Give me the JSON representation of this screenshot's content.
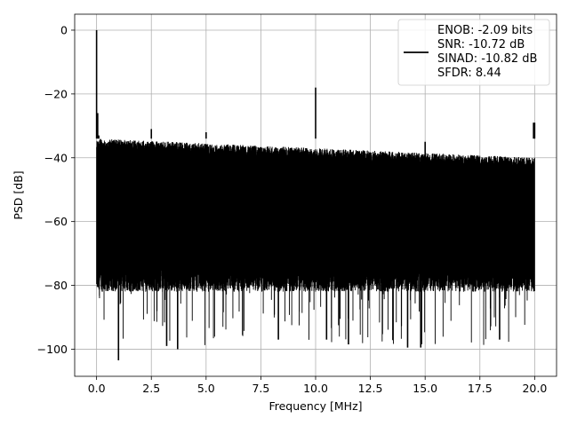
{
  "chart_data": {
    "type": "line",
    "title": "",
    "xlabel": "Frequency [MHz]",
    "ylabel": "PSD [dB]",
    "xlim": [
      -1.0,
      21.0
    ],
    "ylim": [
      -108.5,
      5.0
    ],
    "grid": true,
    "legend_position": "top-right",
    "line_color": "#000000",
    "x_ticks": [
      0.0,
      2.5,
      5.0,
      7.5,
      10.0,
      12.5,
      15.0,
      17.5,
      20.0
    ],
    "x_tick_labels": [
      "0.0",
      "2.5",
      "5.0",
      "7.5",
      "10.0",
      "12.5",
      "15.0",
      "17.5",
      "20.0"
    ],
    "y_ticks": [
      0,
      -20,
      -40,
      -60,
      -80,
      -100
    ],
    "y_tick_labels": [
      "0",
      "−20",
      "−40",
      "−60",
      "−80",
      "−100"
    ],
    "legend_entries": [
      "ENOB: -2.09 bits",
      "SNR: -10.72 dB",
      "SINAD: -10.82 dB",
      "SFDR: 8.44"
    ],
    "noise_band": {
      "x_start": 0.0,
      "x_end": 20.0,
      "upper_start": -34,
      "upper_end": -40,
      "lower_typical": -78,
      "lower_min": -99
    },
    "series": [
      {
        "x": [
          0.0,
          0.05,
          0.1,
          1.0,
          2.5,
          3.2,
          3.7,
          5.0,
          8.3,
          10.0,
          10.5,
          11.5,
          14.2,
          14.8,
          15.0,
          18.4,
          19.95,
          20.0
        ],
        "y": [
          0.0,
          -26.0,
          -33.0,
          -103.5,
          -31.0,
          -99.0,
          -100.0,
          -32.0,
          -97.0,
          -18.0,
          -97.0,
          -98.5,
          -99.5,
          -99.5,
          -35.0,
          -97.0,
          -29.0,
          -29.0
        ]
      }
    ]
  }
}
